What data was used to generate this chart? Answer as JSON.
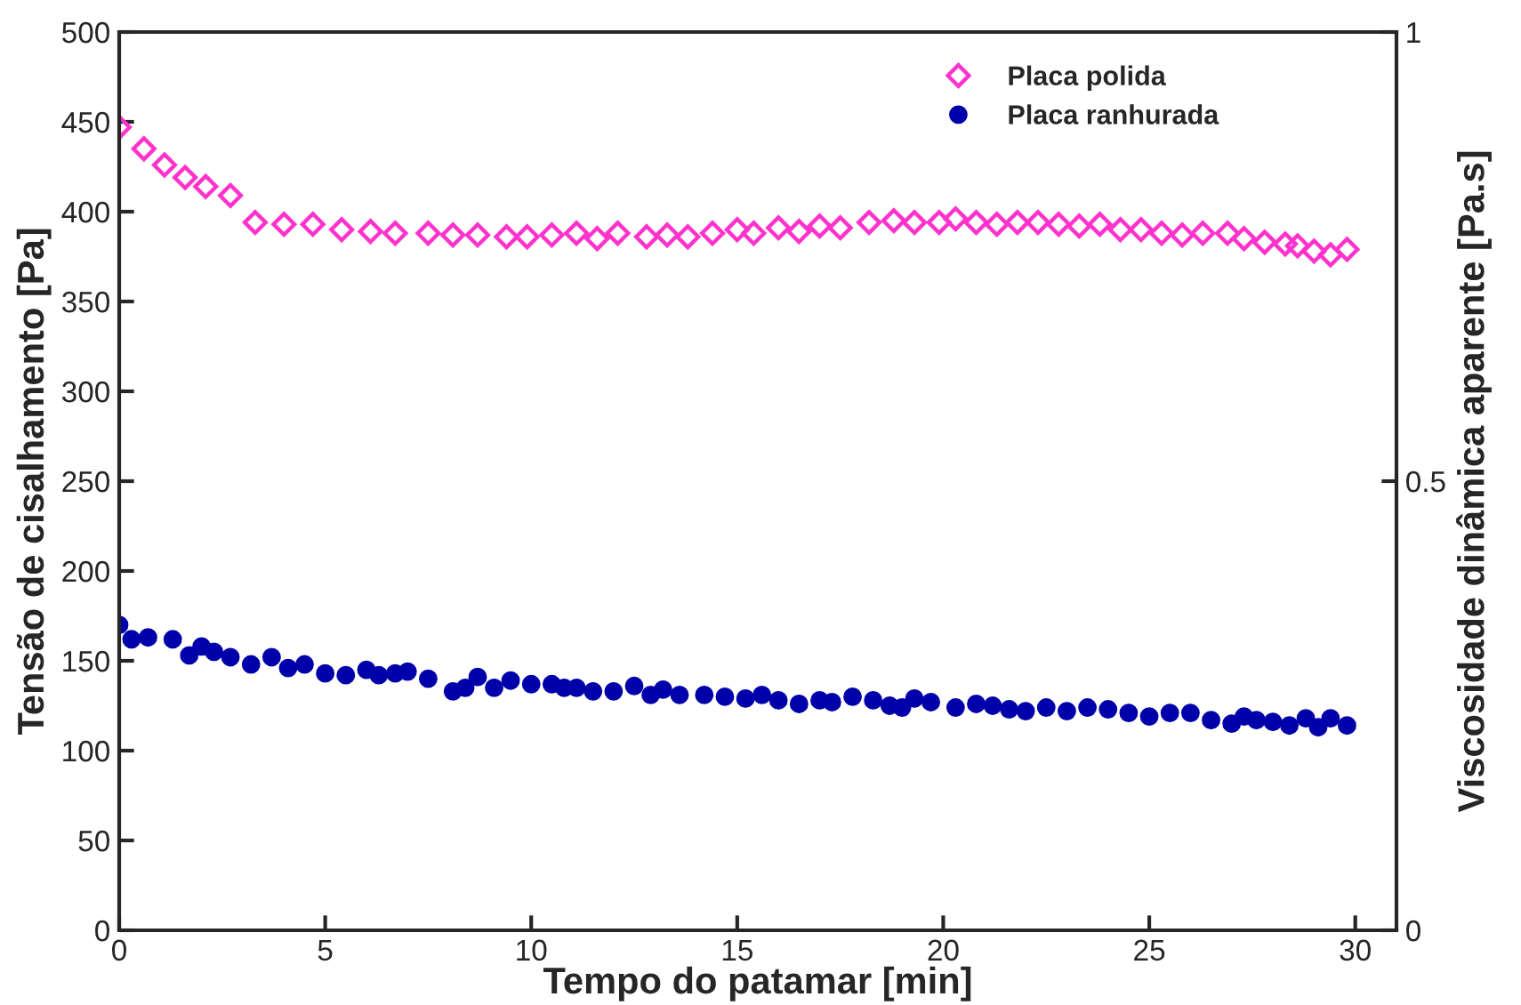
{
  "chart_data": {
    "type": "scatter",
    "xlabel": "Tempo do patamar [min]",
    "ylabel": "Tensão de cisalhamento [Pa]",
    "y2label": "Viscosidade dinâmica aparente [Pa.s]",
    "xlim": [
      0,
      31
    ],
    "xticks": [
      0,
      5,
      10,
      15,
      20,
      25,
      30
    ],
    "ylim": [
      0,
      500
    ],
    "yticks": [
      0,
      50,
      100,
      150,
      200,
      250,
      300,
      350,
      400,
      450,
      500
    ],
    "y2lim": [
      0,
      1
    ],
    "y2ticks": [
      0,
      0.5,
      1
    ],
    "legend": "top right",
    "grid": false,
    "series": [
      {
        "name": "Placa polida",
        "color": "#ff33cc",
        "marker": "diamond",
        "x": [
          0,
          0.6,
          1.1,
          1.6,
          2.1,
          2.7,
          3.3,
          4.0,
          4.7,
          5.4,
          6.1,
          6.7,
          7.5,
          8.1,
          8.7,
          9.4,
          9.9,
          10.5,
          11.1,
          11.6,
          12.1,
          12.8,
          13.3,
          13.8,
          14.4,
          15.0,
          15.4,
          16.0,
          16.5,
          17.0,
          17.5,
          18.2,
          18.8,
          19.3,
          19.9,
          20.3,
          20.8,
          21.3,
          21.8,
          22.3,
          22.8,
          23.3,
          23.8,
          24.3,
          24.8,
          25.3,
          25.8,
          26.3,
          26.9,
          27.3,
          27.8,
          28.3,
          28.6,
          29.0,
          29.4,
          29.8
        ],
        "values": [
          447,
          435,
          426,
          419,
          414,
          409,
          394,
          393,
          393,
          390,
          389,
          388,
          388,
          387,
          387,
          386,
          386,
          387,
          388,
          385,
          388,
          386,
          387,
          386,
          388,
          390,
          388,
          391,
          389,
          392,
          391,
          394,
          395,
          394,
          394,
          396,
          394,
          393,
          394,
          394,
          393,
          392,
          393,
          390,
          390,
          388,
          387,
          388,
          388,
          385,
          383,
          382,
          381,
          378,
          376,
          379
        ]
      },
      {
        "name": "Placa ranhurada",
        "color": "#0000aa",
        "marker": "circle",
        "x": [
          0,
          0.3,
          0.7,
          1.3,
          1.7,
          2.0,
          2.3,
          2.7,
          3.2,
          3.7,
          4.1,
          4.5,
          5.0,
          5.5,
          6.0,
          6.3,
          6.7,
          7.0,
          7.5,
          8.1,
          8.4,
          8.7,
          9.1,
          9.5,
          10.0,
          10.5,
          10.8,
          11.1,
          11.5,
          12.0,
          12.5,
          12.9,
          13.2,
          13.6,
          14.2,
          14.7,
          15.2,
          15.6,
          16.0,
          16.5,
          17.0,
          17.3,
          17.8,
          18.3,
          18.7,
          19.0,
          19.3,
          19.7,
          20.3,
          20.8,
          21.2,
          21.6,
          22.0,
          22.5,
          23.0,
          23.5,
          24.0,
          24.5,
          25.0,
          25.5,
          26.0,
          26.5,
          27.0,
          27.3,
          27.6,
          28.0,
          28.4,
          28.8,
          29.1,
          29.4,
          29.8
        ],
        "values": [
          170,
          162,
          163,
          162,
          153,
          158,
          155,
          152,
          148,
          152,
          146,
          148,
          143,
          142,
          145,
          142,
          143,
          144,
          140,
          133,
          135,
          141,
          135,
          139,
          137,
          137,
          135,
          135,
          133,
          133,
          136,
          131,
          134,
          131,
          131,
          130,
          129,
          131,
          128,
          126,
          128,
          127,
          130,
          128,
          125,
          124,
          129,
          127,
          124,
          126,
          125,
          123,
          122,
          124,
          122,
          124,
          123,
          121,
          119,
          121,
          121,
          117,
          115,
          119,
          117,
          116,
          114,
          118,
          113,
          118,
          114
        ]
      }
    ]
  }
}
